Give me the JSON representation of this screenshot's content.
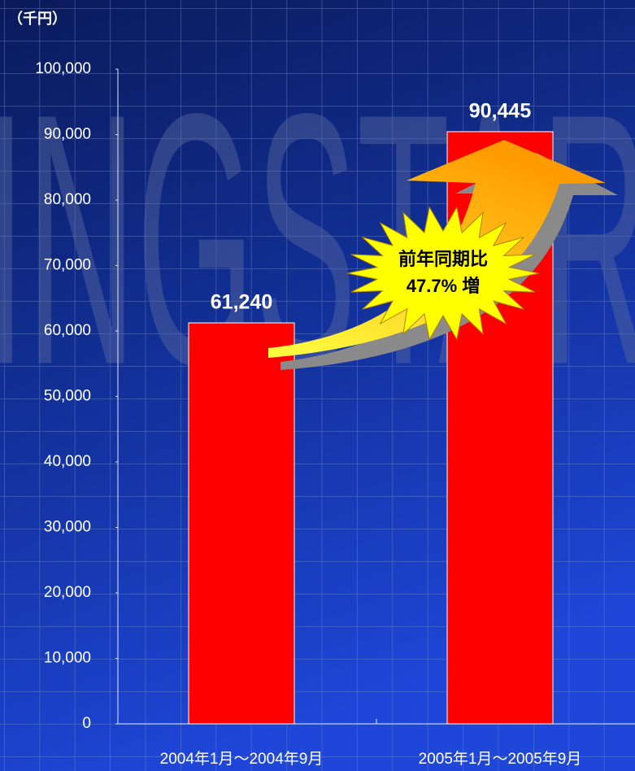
{
  "chart_data": {
    "type": "bar",
    "y_label": "（千円）",
    "watermark": "INGSTAR",
    "categories": [
      "2004年1月～2004年9月",
      "2005年1月～2005年9月"
    ],
    "values": [
      61240,
      90445
    ],
    "value_labels": [
      "61,240",
      "90,445"
    ],
    "color": "#ff0000",
    "ylim": [
      0,
      100000
    ],
    "yticks": [
      0,
      {
        "value": 10000,
        "label": "10,000"
      },
      {
        "value": 20000,
        "label": "20,000"
      },
      {
        "value": 30000,
        "label": "30,000"
      },
      {
        "value": 40000,
        "label": "40,000"
      },
      {
        "value": 50000,
        "label": "50,000"
      },
      {
        "value": 60000,
        "label": "60,000"
      },
      {
        "value": 70000,
        "label": "70,000"
      },
      {
        "value": 80000,
        "label": "80,000"
      },
      {
        "value": 90000,
        "label": "90,000"
      },
      {
        "value": 100000,
        "label": "100,000"
      }
    ],
    "annotation": [
      "前年同期比",
      "47.7% 増"
    ]
  }
}
